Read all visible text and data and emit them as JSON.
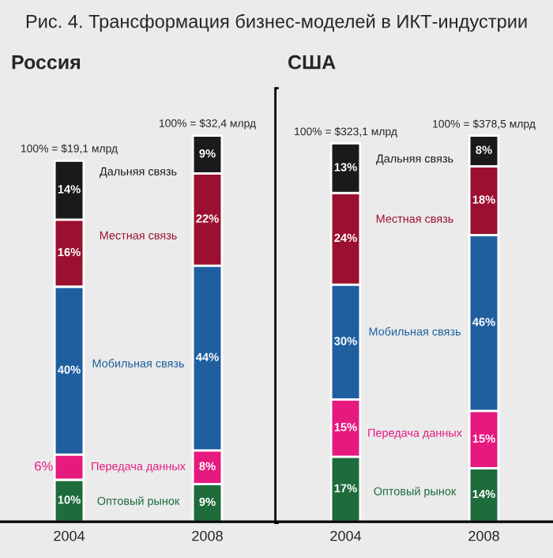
{
  "chart_data": [
    {
      "type": "bar",
      "stacked": true,
      "legend": false,
      "grid": false,
      "title": "Рис. 4. Трансформация бизнес-моделей в ИКТ-индустрии",
      "subtitle": "Россия",
      "categories": [
        "2004",
        "2008"
      ],
      "series": [
        {
          "name": "Оптовый рынок",
          "color": "#1e6b3c",
          "values": [
            10,
            9
          ],
          "value_labels": [
            "10%",
            "9%"
          ]
        },
        {
          "name": "Передача данных",
          "color": "#e6197f",
          "values": [
            6,
            8
          ],
          "value_labels": [
            "6%",
            "8%"
          ]
        },
        {
          "name": "Мобильная связь",
          "color": "#1f5fa0",
          "values": [
            40,
            44
          ],
          "value_labels": [
            "40%",
            "44%"
          ]
        },
        {
          "name": "Местная связь",
          "color": "#9b1030",
          "values": [
            16,
            22
          ],
          "value_labels": [
            "16%",
            "22%"
          ]
        },
        {
          "name": "Дальняя связь",
          "color": "#1a1a1a",
          "values": [
            14,
            9
          ],
          "value_labels": [
            "14%",
            "9%"
          ]
        }
      ],
      "annotations": [
        {
          "text": "100% = $19,1 млрд",
          "x": "2004",
          "y": 86
        },
        {
          "text": "100% = $32,4 млрд",
          "x": "2008",
          "y": 92
        }
      ]
    },
    {
      "type": "bar",
      "stacked": true,
      "legend": false,
      "grid": false,
      "subtitle": "США",
      "categories": [
        "2004",
        "2008"
      ],
      "series": [
        {
          "name": "Оптовый рынок",
          "color": "#1e6b3c",
          "values": [
            17,
            14
          ],
          "value_labels": [
            "17%",
            "14%"
          ]
        },
        {
          "name": "Передача данных",
          "color": "#e6197f",
          "values": [
            15,
            15
          ],
          "value_labels": [
            "15%",
            "15%"
          ]
        },
        {
          "name": "Мобильная связь",
          "color": "#1f5fa0",
          "values": [
            30,
            46
          ],
          "value_labels": [
            "30%",
            "46%"
          ]
        },
        {
          "name": "Местная связь",
          "color": "#9b1030",
          "values": [
            24,
            18
          ],
          "value_labels": [
            "24%",
            "18%"
          ]
        },
        {
          "name": "Дальняя связь",
          "color": "#1a1a1a",
          "values": [
            13,
            8
          ],
          "value_labels": [
            "13%",
            "8%"
          ]
        }
      ],
      "annotations": [
        {
          "text": "100% = $323,1 млрд",
          "x": "2004",
          "y": 99
        },
        {
          "text": "100% = $378,5 млрд",
          "x": "2008",
          "y": 101
        }
      ]
    }
  ]
}
